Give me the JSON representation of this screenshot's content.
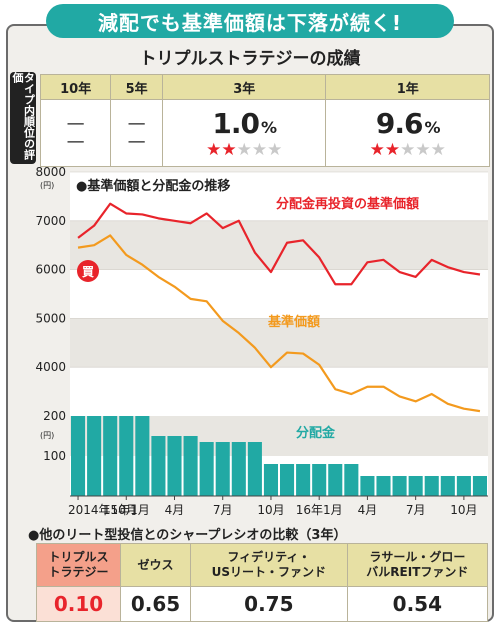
{
  "banner": "減配でも基準価額は下落が続く!",
  "subtitle": "トリプルストラテジーの成績",
  "ranking_label": "タイプ内順位の評価",
  "ratings": {
    "headers": [
      "10年",
      "5年",
      "3年",
      "1年"
    ],
    "cells": [
      {
        "value": "—",
        "value2": "—",
        "pct": "",
        "stars": 0
      },
      {
        "value": "—",
        "value2": "—",
        "pct": "",
        "stars": 0
      },
      {
        "value": "1.0",
        "value2": "",
        "pct": "%",
        "stars": 2
      },
      {
        "value": "9.6",
        "value2": "",
        "pct": "%",
        "stars": 2
      }
    ],
    "star_total": 5
  },
  "chart_data": [
    {
      "type": "line",
      "title": "基準価額と分配金の推移",
      "yunit": "(円)",
      "ylim": [
        3000,
        8000
      ],
      "yticks": [
        8000,
        7000,
        6000,
        5000,
        4000
      ],
      "x": [
        0,
        1,
        2,
        3,
        4,
        5,
        6,
        7,
        8,
        9,
        10,
        11,
        12,
        13,
        14,
        15,
        16,
        17,
        18,
        19,
        20,
        21,
        22,
        23,
        24,
        25
      ],
      "series": [
        {
          "name": "分配金再投資の基準価額",
          "color": "#e8242b",
          "values": [
            6650,
            6900,
            7350,
            7150,
            7130,
            7050,
            7000,
            6950,
            7150,
            6850,
            7000,
            6350,
            5950,
            6550,
            6600,
            6250,
            5700,
            5700,
            6150,
            6200,
            5950,
            5850,
            6200,
            6050,
            5950,
            5900
          ]
        },
        {
          "name": "基準価額",
          "color": "#f39a1e",
          "values": [
            6450,
            6500,
            6700,
            6300,
            6100,
            5850,
            5650,
            5400,
            5350,
            4950,
            4700,
            4400,
            4000,
            4300,
            4280,
            4050,
            3550,
            3450,
            3600,
            3600,
            3400,
            3300,
            3450,
            3250,
            3150,
            3100
          ]
        }
      ],
      "annotation": "買"
    },
    {
      "type": "bar",
      "title": "分配金",
      "yunit": "(円)",
      "ylim": [
        0,
        200
      ],
      "yticks": [
        200,
        100
      ],
      "values": [
        200,
        200,
        200,
        200,
        200,
        150,
        150,
        150,
        135,
        135,
        135,
        135,
        80,
        80,
        80,
        80,
        80,
        80,
        50,
        50,
        50,
        50,
        50,
        50,
        50,
        50
      ],
      "color": "#21a9a4",
      "xtick_labels": [
        "2014年10月",
        "15年1月",
        "4月",
        "7月",
        "10月",
        "16年1月",
        "4月",
        "7月",
        "10月"
      ],
      "xtick_index": [
        0,
        3,
        6,
        9,
        12,
        15,
        18,
        21,
        24
      ]
    }
  ],
  "sharpe": {
    "title": "●他のリート型投信とのシャープレシオの比較（3年）",
    "funds": [
      {
        "name1": "トリプルス",
        "name2": "トラテジー",
        "value": "0.10"
      },
      {
        "name1": "ゼウス",
        "name2": "",
        "value": "0.65"
      },
      {
        "name1": "フィデリティ・",
        "name2": "USリート・ファンド",
        "value": "0.75"
      },
      {
        "name1": "ラサール・グロー",
        "name2": "バルREITファンド",
        "value": "0.54"
      }
    ]
  }
}
